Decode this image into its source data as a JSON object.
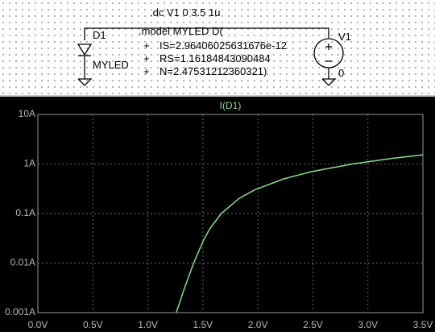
{
  "schematic": {
    "directive": ".dc V1 0 3.5 1u",
    "diode_name": "D1",
    "diode_value": "MYLED",
    "model_header": ".model MYLED D(",
    "model_lines": [
      {
        "prefix": "+",
        "text": "IS=2.96406025631676e-12"
      },
      {
        "prefix": "+",
        "text": "RS=1.16184843090484"
      },
      {
        "prefix": "+",
        "text": "N=2.47531212360321)"
      }
    ],
    "source_name": "V1",
    "node_name": "0"
  },
  "chart_data": {
    "type": "line",
    "title": "I(D1)",
    "x": [
      1.258,
      1.33,
      1.416,
      1.509,
      1.565,
      1.667,
      1.827,
      1.97,
      2.234,
      2.488,
      2.859,
      3.223,
      3.5
    ],
    "values": [
      0.001,
      0.003,
      0.01,
      0.03,
      0.05,
      0.1,
      0.2,
      0.3,
      0.5,
      0.7,
      1.0,
      1.3,
      1.53
    ],
    "color": "#86e086",
    "xlim": [
      0,
      3.5
    ],
    "ylim": [
      0.001,
      10
    ],
    "ylog": true,
    "grid": true,
    "xticks": [
      {
        "value": 0,
        "label": "0.0V"
      },
      {
        "value": 0.5,
        "label": "0.5V"
      },
      {
        "value": 1,
        "label": "1.0V"
      },
      {
        "value": 1.5,
        "label": "1.5V"
      },
      {
        "value": 2,
        "label": "2.0V"
      },
      {
        "value": 2.5,
        "label": "2.5V"
      },
      {
        "value": 3,
        "label": "3.0V"
      },
      {
        "value": 3.5,
        "label": "3.5V"
      }
    ],
    "yticks": [
      {
        "value": 0.001,
        "label": "0.001A"
      },
      {
        "value": 0.01,
        "label": "0.01A"
      },
      {
        "value": 0.1,
        "label": "0.1A"
      },
      {
        "value": 1,
        "label": "1A"
      },
      {
        "value": 10,
        "label": "10A"
      }
    ]
  }
}
